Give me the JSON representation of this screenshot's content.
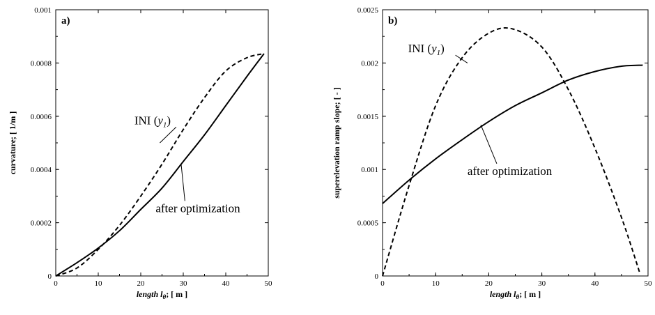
{
  "chart_data": [
    {
      "type": "line",
      "panel_label": "a)",
      "xlabel": "length l",
      "xlabel_sub": "θ",
      "xlabel_unit": "; [ m ]",
      "ylabel": "curvature; [ 1/m ]",
      "xlim": [
        0,
        50
      ],
      "ylim": [
        0,
        0.001
      ],
      "x_ticks": [
        "0",
        "10",
        "20",
        "30",
        "40",
        "50"
      ],
      "y_ticks": [
        "0",
        "0.0002",
        "0.0004",
        "0.0006",
        "0.0008",
        "0.001"
      ],
      "grid": false,
      "series": [
        {
          "name": "after optimization",
          "style": "solid",
          "x": [
            0,
            5,
            10,
            15,
            20,
            25,
            30,
            35,
            40,
            45,
            49
          ],
          "y": [
            0,
            5e-05,
            0.000105,
            0.00017,
            0.00025,
            0.00033,
            0.00043,
            0.00053,
            0.00064,
            0.00075,
            0.000835
          ]
        },
        {
          "name": "INI",
          "name_var": "y",
          "name_sub": "1",
          "style": "dashed",
          "x": [
            0,
            5,
            10,
            15,
            20,
            25,
            30,
            35,
            40,
            45,
            49
          ],
          "y": [
            0,
            3e-05,
            0.0001,
            0.00019,
            0.0003,
            0.00042,
            0.00055,
            0.00067,
            0.00077,
            0.00082,
            0.000835
          ]
        }
      ],
      "annotations": [
        {
          "series": 0,
          "text_x": 23.5,
          "text_y": 0.00024,
          "point_x": 29.5,
          "point_y": 0.00042
        },
        {
          "series": 1,
          "text_x": 18.5,
          "text_y": 0.00057,
          "point_x": 24.5,
          "point_y": 0.0005
        }
      ]
    },
    {
      "type": "line",
      "panel_label": "b)",
      "xlabel": "length l",
      "xlabel_sub": "θ",
      "xlabel_unit": "; [ m ]",
      "ylabel": "superelevation ramp slope; [ - ]",
      "xlim": [
        0,
        50
      ],
      "ylim": [
        0,
        0.0025
      ],
      "x_ticks": [
        "0",
        "10",
        "20",
        "30",
        "40",
        "50"
      ],
      "y_ticks": [
        "0",
        "0.0005",
        "0.001",
        "0.0015",
        "0.002",
        "0.0025"
      ],
      "grid": false,
      "series": [
        {
          "name": "after optimization",
          "style": "solid",
          "x": [
            0,
            5,
            10,
            15,
            20,
            25,
            30,
            35,
            40,
            45,
            49
          ],
          "y": [
            0.00068,
            0.0009,
            0.0011,
            0.00128,
            0.00145,
            0.0016,
            0.00172,
            0.00184,
            0.00192,
            0.00197,
            0.00198
          ]
        },
        {
          "name": "INI",
          "name_var": "y",
          "name_sub": "1",
          "style": "dashed",
          "x": [
            0,
            5,
            10,
            15,
            20,
            24.5,
            30,
            35,
            40,
            45,
            48.5
          ],
          "y": [
            0,
            0.00085,
            0.0016,
            0.00205,
            0.00228,
            0.00232,
            0.00215,
            0.00175,
            0.0012,
            0.00055,
            2e-05
          ]
        }
      ],
      "annotations": [
        {
          "series": 0,
          "text_x": 16,
          "text_y": 0.00095,
          "point_x": 18.5,
          "point_y": 0.00142
        },
        {
          "series": 1,
          "text_x": 4.8,
          "text_y": 0.0021,
          "point_x": 16,
          "point_y": 0.002
        }
      ]
    }
  ]
}
